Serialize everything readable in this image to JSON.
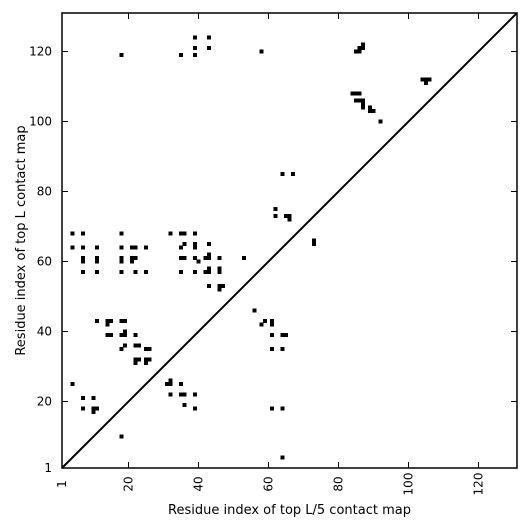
{
  "chart_data": {
    "type": "scatter",
    "marker": "square",
    "xlabel": "Residue index of top L/5 contact map",
    "ylabel": "Residue index of top L contact map",
    "xlim": [
      1,
      131
    ],
    "ylim": [
      1,
      131
    ],
    "xticks": [
      1,
      20,
      40,
      60,
      80,
      100,
      120
    ],
    "yticks": [
      1,
      20,
      40,
      60,
      80,
      100,
      120
    ],
    "xtick_rotation": -90,
    "diagonal": true,
    "colors": {
      "points": "#000000",
      "axes": "#000000",
      "background": "#ffffff"
    },
    "points": [
      [
        18,
        119
      ],
      [
        35,
        119
      ],
      [
        39,
        119
      ],
      [
        39,
        121
      ],
      [
        39,
        124
      ],
      [
        43,
        121
      ],
      [
        43,
        124
      ],
      [
        58,
        120
      ],
      [
        4,
        68
      ],
      [
        7,
        68
      ],
      [
        18,
        68
      ],
      [
        32,
        68
      ],
      [
        35,
        68
      ],
      [
        36,
        68
      ],
      [
        39,
        68
      ],
      [
        4,
        64
      ],
      [
        7,
        64
      ],
      [
        11,
        64
      ],
      [
        18,
        64
      ],
      [
        21,
        64
      ],
      [
        22,
        64
      ],
      [
        25,
        64
      ],
      [
        35,
        64
      ],
      [
        36,
        65
      ],
      [
        39,
        64
      ],
      [
        39,
        65
      ],
      [
        43,
        65
      ],
      [
        7,
        61
      ],
      [
        7,
        60
      ],
      [
        11,
        61
      ],
      [
        11,
        60
      ],
      [
        18,
        61
      ],
      [
        18,
        60
      ],
      [
        21,
        61
      ],
      [
        21,
        60
      ],
      [
        22,
        61
      ],
      [
        35,
        61
      ],
      [
        36,
        61
      ],
      [
        39,
        61
      ],
      [
        40,
        60
      ],
      [
        42,
        61
      ],
      [
        43,
        61
      ],
      [
        43,
        62
      ],
      [
        46,
        61
      ],
      [
        53,
        61
      ],
      [
        7,
        57
      ],
      [
        11,
        57
      ],
      [
        18,
        57
      ],
      [
        22,
        57
      ],
      [
        25,
        57
      ],
      [
        35,
        57
      ],
      [
        39,
        57
      ],
      [
        42,
        57
      ],
      [
        43,
        57
      ],
      [
        43,
        58
      ],
      [
        46,
        57
      ],
      [
        46,
        58
      ],
      [
        43,
        53
      ],
      [
        46,
        53
      ],
      [
        46,
        52
      ],
      [
        47,
        53
      ],
      [
        62,
        75
      ],
      [
        62,
        73
      ],
      [
        64,
        85
      ],
      [
        67,
        85
      ],
      [
        65,
        73
      ],
      [
        66,
        73
      ],
      [
        66,
        72
      ],
      [
        73,
        66
      ],
      [
        73,
        65
      ],
      [
        84,
        108
      ],
      [
        85,
        108
      ],
      [
        86,
        108
      ],
      [
        85,
        106
      ],
      [
        86,
        106
      ],
      [
        87,
        106
      ],
      [
        87,
        105
      ],
      [
        87,
        104
      ],
      [
        89,
        104
      ],
      [
        89,
        103
      ],
      [
        90,
        103
      ],
      [
        92,
        100
      ],
      [
        85,
        120
      ],
      [
        86,
        120
      ],
      [
        86,
        121
      ],
      [
        87,
        121
      ],
      [
        87,
        122
      ],
      [
        104,
        112
      ],
      [
        105,
        112
      ],
      [
        106,
        112
      ],
      [
        105,
        111
      ],
      [
        11,
        43
      ],
      [
        14,
        43
      ],
      [
        15,
        43
      ],
      [
        14,
        42
      ],
      [
        18,
        43
      ],
      [
        19,
        43
      ],
      [
        14,
        39
      ],
      [
        15,
        39
      ],
      [
        18,
        39
      ],
      [
        19,
        39
      ],
      [
        19,
        40
      ],
      [
        22,
        39
      ],
      [
        18,
        35
      ],
      [
        19,
        36
      ],
      [
        22,
        36
      ],
      [
        23,
        36
      ],
      [
        25,
        35
      ],
      [
        26,
        35
      ],
      [
        22,
        32
      ],
      [
        23,
        32
      ],
      [
        22,
        31
      ],
      [
        25,
        32
      ],
      [
        26,
        32
      ],
      [
        25,
        31
      ],
      [
        56,
        46
      ],
      [
        58,
        42
      ],
      [
        59,
        43
      ],
      [
        61,
        43
      ],
      [
        61,
        42
      ],
      [
        61,
        39
      ],
      [
        64,
        39
      ],
      [
        65,
        39
      ],
      [
        61,
        35
      ],
      [
        64,
        35
      ],
      [
        4,
        25
      ],
      [
        31,
        25
      ],
      [
        32,
        25
      ],
      [
        32,
        26
      ],
      [
        35,
        25
      ],
      [
        7,
        21
      ],
      [
        10,
        21
      ],
      [
        32,
        22
      ],
      [
        35,
        22
      ],
      [
        36,
        22
      ],
      [
        39,
        22
      ],
      [
        7,
        18
      ],
      [
        10,
        18
      ],
      [
        10,
        17
      ],
      [
        11,
        18
      ],
      [
        36,
        19
      ],
      [
        39,
        18
      ],
      [
        61,
        18
      ],
      [
        64,
        18
      ],
      [
        18,
        10
      ],
      [
        64,
        4
      ]
    ]
  }
}
